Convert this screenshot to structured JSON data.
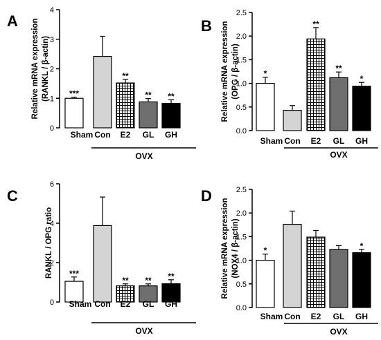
{
  "panels": [
    {
      "letter": "A",
      "chart_data": {
        "type": "bar",
        "categories": [
          "Sham",
          "Con",
          "E2",
          "GL",
          "GH"
        ],
        "values": [
          1.0,
          2.42,
          1.52,
          0.88,
          0.83
        ],
        "errors": [
          0.04,
          0.68,
          0.12,
          0.11,
          0.12
        ],
        "significance": [
          "***",
          "",
          "**",
          "**",
          "**"
        ],
        "fills": [
          "white",
          "lightgray",
          "checker",
          "gray",
          "black"
        ],
        "ylabel_lines": [
          "Relative mRNA expression",
          "(RANKL / β-actin)"
        ],
        "ylim": [
          0,
          4
        ],
        "yticks": [
          0,
          1,
          2,
          3,
          4
        ],
        "tick_labels": [
          "0",
          "1",
          "2",
          "3",
          "4"
        ],
        "group_label": "OVX"
      }
    },
    {
      "letter": "B",
      "chart_data": {
        "type": "bar",
        "categories": [
          "Sham",
          "Con",
          "E2",
          "GL",
          "GH"
        ],
        "values": [
          1.0,
          0.43,
          1.94,
          1.12,
          0.94
        ],
        "errors": [
          0.13,
          0.1,
          0.24,
          0.12,
          0.08
        ],
        "significance": [
          "*",
          "",
          "**",
          "**",
          "*"
        ],
        "fills": [
          "white",
          "lightgray",
          "checker",
          "gray",
          "black"
        ],
        "ylabel_lines": [
          "Relative mRNA expression",
          "(OPG / β-actin)"
        ],
        "ylim": [
          0,
          2.5
        ],
        "yticks": [
          0,
          0.5,
          1.0,
          1.5,
          2.0,
          2.5
        ],
        "tick_labels": [
          "0.0",
          "0.5",
          "1.0",
          "1.5",
          "2.0",
          "2.5"
        ],
        "group_label": "OVX"
      }
    },
    {
      "letter": "C",
      "chart_data": {
        "type": "bar",
        "categories": [
          "Sham",
          "Con",
          "E2",
          "GL",
          "GH"
        ],
        "values": [
          1.05,
          3.88,
          0.82,
          0.82,
          0.93
        ],
        "errors": [
          0.22,
          1.45,
          0.1,
          0.1,
          0.2
        ],
        "significance": [
          "***",
          "",
          "**",
          "**",
          "**"
        ],
        "fills": [
          "white",
          "lightgray",
          "checker",
          "gray",
          "black"
        ],
        "ylabel_lines": [
          "RANKL / OPG ratio"
        ],
        "ylim": [
          0,
          6
        ],
        "yticks": [
          0,
          2,
          4,
          6
        ],
        "tick_labels": [
          "0",
          "2",
          "4",
          "6"
        ],
        "group_label": "OVX"
      }
    },
    {
      "letter": "D",
      "chart_data": {
        "type": "bar",
        "categories": [
          "Sham",
          "Con",
          "E2",
          "GL",
          "GH"
        ],
        "values": [
          1.0,
          1.76,
          1.49,
          1.23,
          1.16
        ],
        "errors": [
          0.13,
          0.28,
          0.14,
          0.08,
          0.07
        ],
        "significance": [
          "*",
          "",
          "",
          "",
          "*"
        ],
        "fills": [
          "white",
          "lightgray",
          "checker",
          "gray",
          "black"
        ],
        "ylabel_lines": [
          "Relative mRNA expression",
          "(NOX4 / β-actin)"
        ],
        "ylim": [
          0,
          2.5
        ],
        "yticks": [
          0,
          0.5,
          1.0,
          1.5,
          2.0,
          2.5
        ],
        "tick_labels": [
          "0.0",
          "0.5",
          "1.0",
          "1.5",
          "2.0",
          "2.5"
        ],
        "group_label": "OVX"
      }
    }
  ]
}
